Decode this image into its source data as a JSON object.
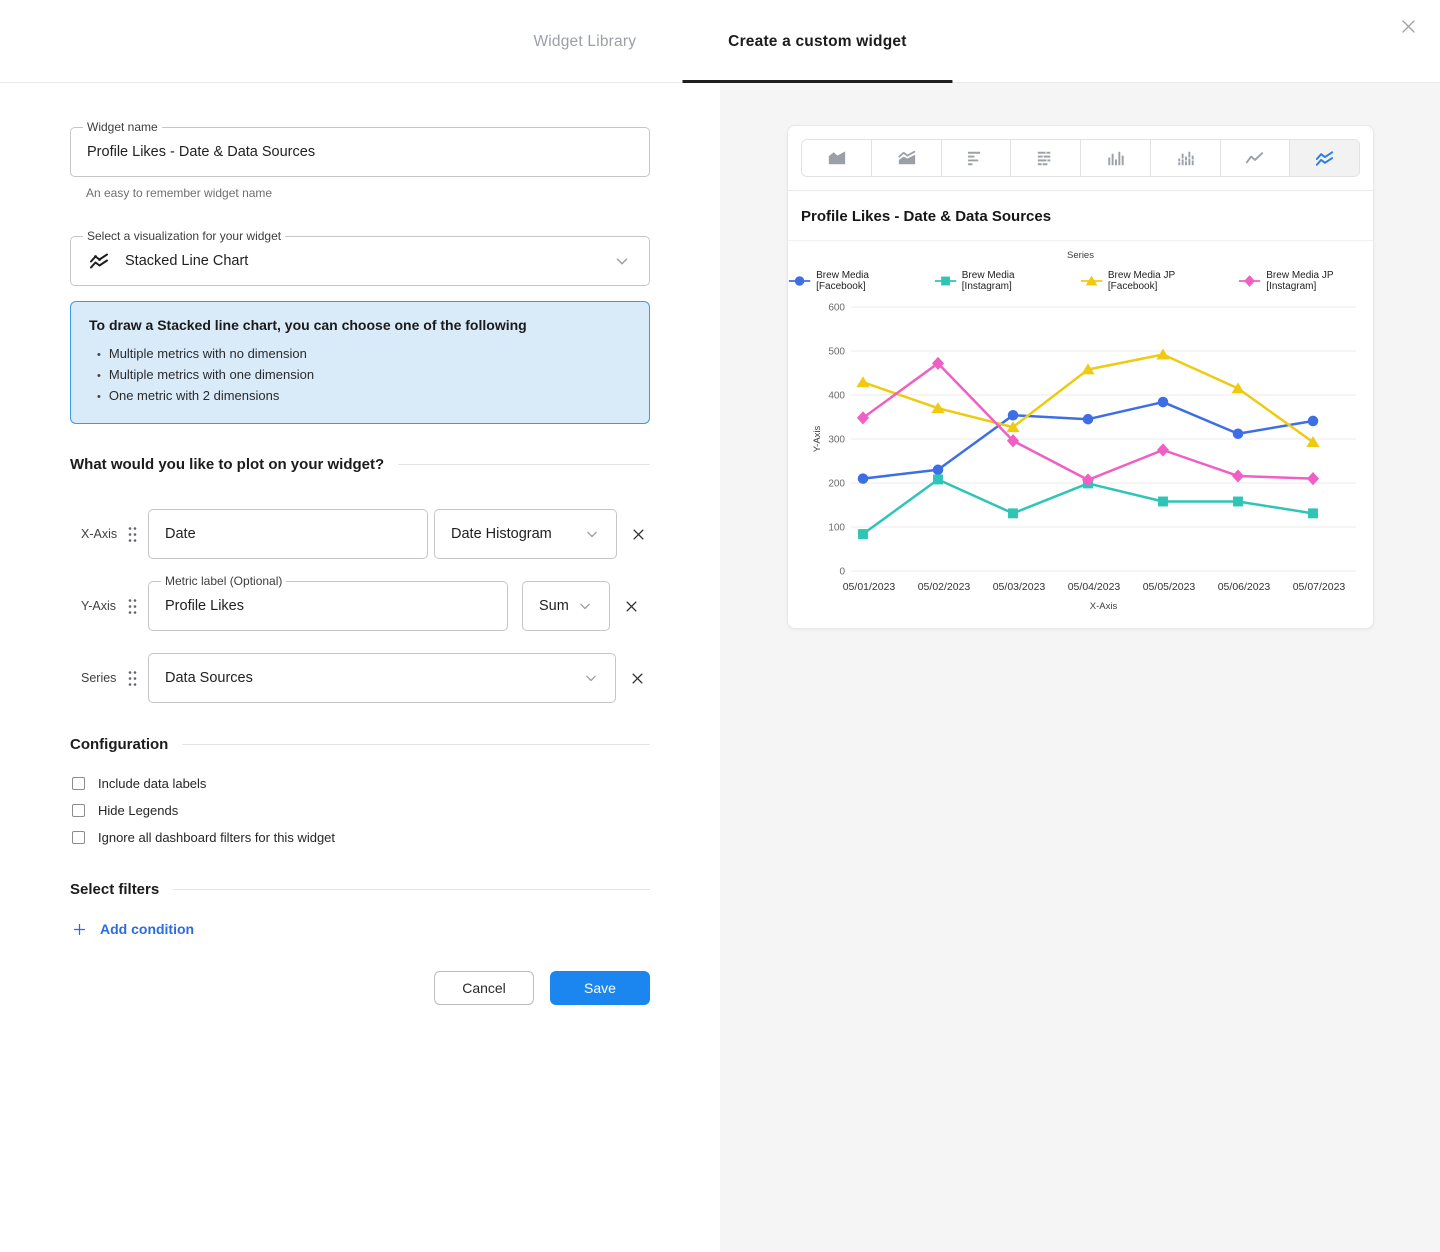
{
  "tabs": {
    "library": "Widget Library",
    "create": "Create a custom widget"
  },
  "form": {
    "widget_name": {
      "label": "Widget name",
      "value": "Profile Likes - Date & Data Sources",
      "helper": "An easy to remember widget name"
    },
    "visualization": {
      "label": "Select a visualization for your widget",
      "value": "Stacked Line Chart"
    },
    "info_box": {
      "title": "To draw a Stacked line chart, you can choose one of the following",
      "bullets": [
        "Multiple metrics with no dimension",
        "Multiple metrics with one dimension",
        "One metric with 2 dimensions"
      ]
    },
    "plot_section_title": "What would you like to plot on your widget?",
    "x_axis_row": {
      "label": "X-Axis",
      "value": "Date",
      "aggregation": "Date Histogram"
    },
    "y_axis_row": {
      "label": "Y-Axis",
      "metric_label": "Metric label (Optional)",
      "value": "Profile Likes",
      "aggregation": "Sum"
    },
    "series_row": {
      "label": "Series",
      "value": "Data Sources"
    },
    "configuration": {
      "title": "Configuration",
      "options": [
        {
          "label": "Include data labels",
          "checked": false
        },
        {
          "label": "Hide Legends",
          "checked": false
        },
        {
          "label": "Ignore all dashboard filters for this widget",
          "checked": false
        }
      ]
    },
    "filters": {
      "title": "Select filters",
      "add_condition_label": "Add condition"
    },
    "actions": {
      "cancel_label": "Cancel",
      "save_label": "Save"
    }
  },
  "preview": {
    "title": "Profile Likes - Date & Data Sources",
    "chart_type_buttons": [
      {
        "name": "area-chart",
        "selected": false
      },
      {
        "name": "stacked-area-chart",
        "selected": false
      },
      {
        "name": "horizontal-bar-chart",
        "selected": false
      },
      {
        "name": "stacked-horizontal-bar-chart",
        "selected": false
      },
      {
        "name": "column-chart",
        "selected": false
      },
      {
        "name": "stacked-column-chart",
        "selected": false
      },
      {
        "name": "line-chart",
        "selected": false
      },
      {
        "name": "stacked-line-chart",
        "selected": true
      }
    ]
  },
  "chart_data": {
    "type": "line",
    "title": "Profile Likes - Date & Data Sources",
    "legend_title": "Series",
    "legend_position": "top",
    "grid": true,
    "x": [
      "05/01/2023",
      "05/02/2023",
      "05/03/2023",
      "05/04/2023",
      "05/05/2023",
      "05/06/2023",
      "05/07/2023"
    ],
    "series": [
      {
        "name": "Brew Media [Facebook]",
        "marker": "circle",
        "color": "#3e6ee6",
        "values": [
          210,
          230,
          354,
          345,
          384,
          312,
          341
        ]
      },
      {
        "name": "Brew Media [Instagram]",
        "marker": "square",
        "color": "#2ec5b6",
        "values": [
          84,
          208,
          131,
          199,
          158,
          158,
          131
        ]
      },
      {
        "name": "Brew Media JP [Facebook]",
        "marker": "triangle",
        "color": "#eecb11",
        "values": [
          429,
          370,
          327,
          458,
          492,
          415,
          293
        ]
      },
      {
        "name": "Brew Media JP [Instagram]",
        "marker": "diamond",
        "color": "#ef5fc4",
        "values": [
          348,
          472,
          296,
          207,
          275,
          216,
          210
        ]
      }
    ],
    "xlabel": "X-Axis",
    "ylabel": "Y-Axis",
    "ylim": [
      0,
      600
    ],
    "ytick_step": 100
  },
  "colors": {
    "save_button": "#1b86f0",
    "link_blue": "#2d6ce0",
    "info_bg": "#d9eaf9",
    "info_border": "#3d99e5",
    "selected_chart_icon": "#2b7de9",
    "gridline": "#ebebeb"
  }
}
